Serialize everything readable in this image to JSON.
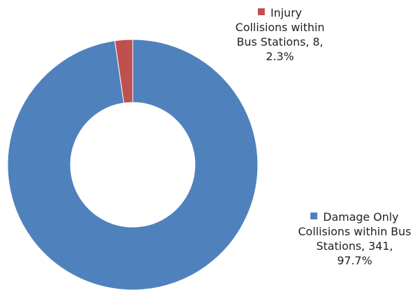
{
  "chart_data": {
    "type": "donut",
    "labels": [
      "Injury Collisions within Bus Stations, 8, 2.3%",
      "Damage Only Collisions within Bus Stations, 341, 97.7%"
    ],
    "values": [
      8,
      341
    ],
    "colors": [
      "#c0504d",
      "#4f81bd"
    ]
  }
}
